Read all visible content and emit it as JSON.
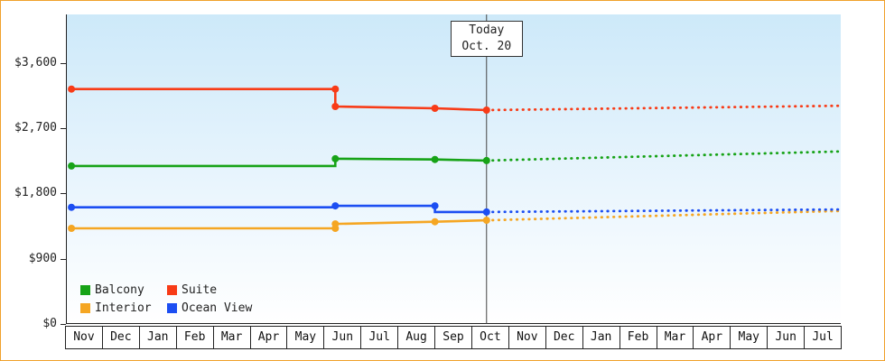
{
  "frame": {
    "border_color": "#F0A12C"
  },
  "chart_data": {
    "type": "line",
    "title": "",
    "x_axis": {
      "months": [
        "Nov",
        "Dec",
        "Jan",
        "Feb",
        "Mar",
        "Apr",
        "May",
        "Jun",
        "Jul",
        "Aug",
        "Sep",
        "Oct",
        "Nov",
        "Dec",
        "Jan",
        "Feb",
        "Mar",
        "Apr",
        "May",
        "Jun",
        "Jul"
      ]
    },
    "y_axis": {
      "ticks": [
        {
          "label": "$0",
          "value": 0
        },
        {
          "label": "$900",
          "value": 900
        },
        {
          "label": "$1,800",
          "value": 1800
        },
        {
          "label": "$2,700",
          "value": 2700
        },
        {
          "label": "$3,600",
          "value": 3600
        }
      ],
      "ylim": [
        0,
        4270
      ]
    },
    "xlim": [
      0,
      21
    ],
    "grid": false,
    "today": {
      "line1": "Today",
      "line2": "Oct. 20",
      "x": 11.4
    },
    "plot_bg": {
      "top": "#CDE9F9",
      "bottom": "#FFFFFF"
    },
    "series": [
      {
        "name": "Balcony",
        "color": "#17A317",
        "history": [
          [
            0.15,
            2180
          ],
          [
            7.3,
            2180
          ],
          [
            7.3,
            2280
          ],
          [
            10,
            2270
          ],
          [
            11.4,
            2255
          ]
        ],
        "markers": [
          [
            0.15,
            2180
          ],
          [
            7.3,
            2280
          ],
          [
            10,
            2270
          ],
          [
            11.4,
            2255
          ]
        ],
        "forecast": [
          [
            11.4,
            2255
          ],
          [
            21,
            2380
          ]
        ]
      },
      {
        "name": "Suite",
        "color": "#F83B17",
        "history": [
          [
            0.15,
            3240
          ],
          [
            7.3,
            3240
          ],
          [
            7.3,
            3000
          ],
          [
            10,
            2975
          ],
          [
            11.4,
            2950
          ]
        ],
        "markers": [
          [
            0.15,
            3240
          ],
          [
            7.3,
            3240
          ],
          [
            7.3,
            3000
          ],
          [
            10,
            2975
          ],
          [
            11.4,
            2950
          ]
        ],
        "forecast": [
          [
            11.4,
            2950
          ],
          [
            21,
            3010
          ]
        ]
      },
      {
        "name": "Interior",
        "color": "#F5A623",
        "history": [
          [
            0.15,
            1320
          ],
          [
            7.3,
            1320
          ],
          [
            7.3,
            1380
          ],
          [
            10,
            1410
          ],
          [
            11.4,
            1430
          ]
        ],
        "markers": [
          [
            0.15,
            1320
          ],
          [
            7.3,
            1320
          ],
          [
            7.3,
            1380
          ],
          [
            10,
            1410
          ],
          [
            11.4,
            1430
          ]
        ],
        "forecast": [
          [
            11.4,
            1430
          ],
          [
            21,
            1560
          ]
        ]
      },
      {
        "name": "Ocean View",
        "color": "#1C4EF2",
        "history": [
          [
            0.15,
            1610
          ],
          [
            7.3,
            1610
          ],
          [
            7.3,
            1630
          ],
          [
            10,
            1630
          ],
          [
            10,
            1545
          ],
          [
            11.4,
            1545
          ]
        ],
        "markers": [
          [
            0.15,
            1610
          ],
          [
            7.3,
            1630
          ],
          [
            10,
            1630
          ],
          [
            11.4,
            1545
          ]
        ],
        "forecast": [
          [
            11.4,
            1545
          ],
          [
            21,
            1580
          ]
        ]
      }
    ],
    "legend": {
      "position": "bottom-left",
      "order": [
        "Balcony",
        "Suite",
        "Interior",
        "Ocean View"
      ]
    }
  }
}
